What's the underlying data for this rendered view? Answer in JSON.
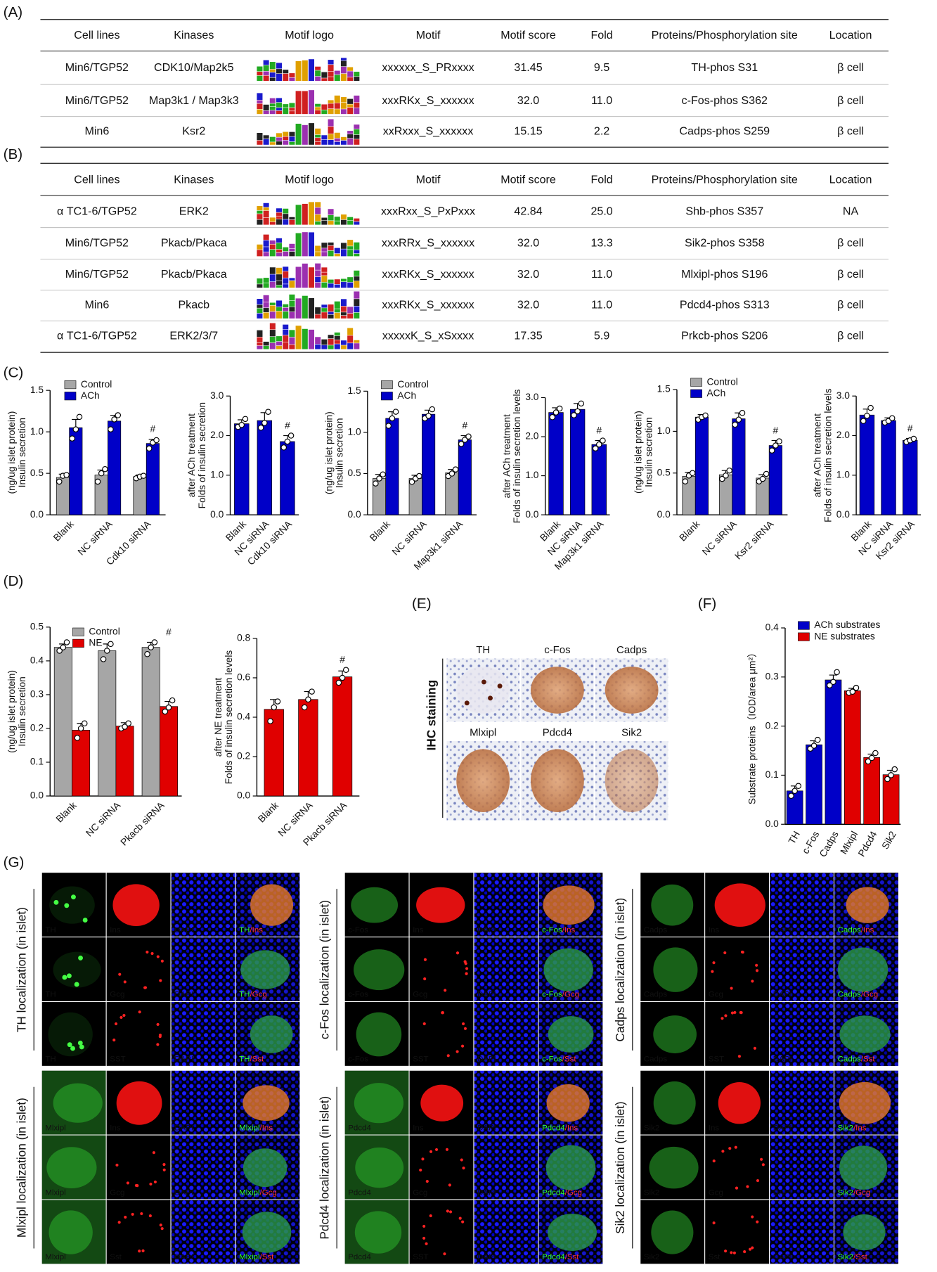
{
  "panel_labels": {
    "A": "(A)",
    "B": "(B)",
    "C": "(C)",
    "D": "(D)",
    "E": "(E)",
    "F": "(F)",
    "G": "(G)"
  },
  "table_a": {
    "header": [
      "Cell lines",
      "Kinases",
      "Motif logo",
      "Motif",
      "Motif score",
      "Fold",
      "Proteins/Phosphorylation site",
      "Location"
    ],
    "rows": [
      [
        "Min6/TGP52",
        "CDK10/Map2k5",
        "xxxxxx_S_PRxxxx",
        "31.45",
        "9.5",
        "TH-phos S31",
        "β cell"
      ],
      [
        "Min6/TGP52",
        "Map3k1 / Map3k3",
        "xxxRKx_S_xxxxxx",
        "32.0",
        "11.0",
        "c-Fos-phos S362",
        "β cell"
      ],
      [
        "Min6",
        "Ksr2",
        "xxRxxx_S_xxxxxx",
        "15.15",
        "2.2",
        "Cadps-phos S259",
        "β cell"
      ]
    ]
  },
  "table_b": {
    "header": [
      "Cell lines",
      "Kinases",
      "Motif logo",
      "Motif",
      "Motif score",
      "Fold",
      "Proteins/Phosphorylation site",
      "Location"
    ],
    "rows": [
      [
        "α TC1-6/TGP52",
        "ERK2",
        "xxxRxx_S_PxPxxx",
        "42.84",
        "25.0",
        "Shb-phos S357",
        "NA"
      ],
      [
        "Min6/TGP52",
        "Pkacb/Pkaca",
        "xxxRRx_S_xxxxxx",
        "32.0",
        "13.3",
        "Sik2-phos S358",
        "β cell"
      ],
      [
        "Min6/TGP52",
        "Pkacb/Pkaca",
        "xxxRKx_S_xxxxxx",
        "32.0",
        "11.0",
        "Mlxipl-phos S196",
        "β cell"
      ],
      [
        "Min6",
        "Pkacb",
        "xxxRKx_S_xxxxxx",
        "32.0",
        "11.0",
        "Pdcd4-phos S313",
        "β cell"
      ],
      [
        "α TC1-6/TGP52",
        "ERK2/3/7",
        "xxxxxK_S_xSxxxx",
        "17.35",
        "5.9",
        "Prkcb-phos S206",
        "β cell"
      ]
    ]
  },
  "chart_data": [
    {
      "type": "bar",
      "ylabel": [
        "Insulin secretion",
        "(ng/ug islet protein)"
      ],
      "categories": [
        "Blank",
        "NC siRNA",
        "Cdk10 siRNA"
      ],
      "series": [
        {
          "name": "Control",
          "color": "#a6a6a6",
          "values": [
            0.45,
            0.48,
            0.46
          ],
          "errors": [
            0.04,
            0.06,
            0.02
          ],
          "points": [
            [
              0.4,
              0.47,
              0.48
            ],
            [
              0.4,
              0.5,
              0.55
            ],
            [
              0.44,
              0.46,
              0.47
            ]
          ]
        },
        {
          "name": "ACh",
          "color": "#0000c8",
          "values": [
            1.05,
            1.13,
            0.86
          ],
          "errors": [
            0.1,
            0.07,
            0.05
          ],
          "points": [
            [
              0.92,
              1.03,
              1.18
            ],
            [
              1.03,
              1.15,
              1.2
            ],
            [
              0.8,
              0.87,
              0.9
            ]
          ]
        }
      ],
      "annotations": [
        null,
        null,
        "#"
      ],
      "ylim": [
        0,
        1.5
      ],
      "yticks": [
        {
          "value": 0,
          "label": "0.0"
        },
        0.5,
        {
          "value": 1,
          "label": "1.0"
        },
        1.5
      ]
    },
    {
      "type": "bar",
      "ylabel": [
        "Folds of insulin secretion",
        "after ACh treatment"
      ],
      "categories": [
        "Blank",
        "NC siRNA",
        "Cdk10 siRNA"
      ],
      "color": "#0000c8",
      "values": [
        2.3,
        2.38,
        1.85
      ],
      "errors": [
        0.1,
        0.2,
        0.15
      ],
      "points": [
        [
          2.22,
          2.27,
          2.42
        ],
        [
          2.2,
          2.32,
          2.6
        ],
        [
          1.7,
          1.85,
          2.0
        ]
      ],
      "annotations": [
        null,
        null,
        "#"
      ],
      "ylim": [
        0,
        3
      ],
      "yticks": [
        {
          "value": 0,
          "label": "0.0"
        },
        {
          "value": 1,
          "label": "1.0"
        },
        {
          "value": 2,
          "label": "2.0"
        },
        {
          "value": 3,
          "label": "3.0"
        }
      ]
    },
    {
      "type": "bar",
      "ylabel": [
        "Insulin secretion",
        "(ng/ug islet protein)"
      ],
      "categories": [
        "Blank",
        "NC siRNA",
        "Map3k1 siRNA"
      ],
      "series": [
        {
          "name": "Control",
          "color": "#a6a6a6",
          "values": [
            0.44,
            0.44,
            0.51
          ],
          "errors": [
            0.05,
            0.04,
            0.04
          ],
          "points": [
            [
              0.38,
              0.44,
              0.49
            ],
            [
              0.4,
              0.44,
              0.47
            ],
            [
              0.47,
              0.5,
              0.55
            ]
          ]
        },
        {
          "name": "ACh",
          "color": "#0000c8",
          "values": [
            1.17,
            1.22,
            0.91
          ],
          "errors": [
            0.08,
            0.05,
            0.05
          ],
          "points": [
            [
              1.08,
              1.17,
              1.25
            ],
            [
              1.17,
              1.2,
              1.28
            ],
            [
              0.86,
              0.91,
              0.95
            ]
          ]
        }
      ],
      "annotations": [
        null,
        null,
        "#"
      ],
      "ylim": [
        0,
        1.5
      ],
      "yticks": [
        {
          "value": 0,
          "label": "0.0"
        },
        0.5,
        {
          "value": 1,
          "label": "1.0"
        },
        1.5
      ]
    },
    {
      "type": "bar",
      "ylabel": [
        "Folds of insulin secretion levels",
        "after ACh treatment"
      ],
      "categories": [
        "Blank",
        "NC siRNA",
        "Map3k1 siRNA"
      ],
      "color": "#0000c8",
      "values": [
        2.62,
        2.7,
        1.8
      ],
      "errors": [
        0.12,
        0.15,
        0.1
      ],
      "points": [
        [
          2.5,
          2.62,
          2.72
        ],
        [
          2.55,
          2.65,
          2.85
        ],
        [
          1.7,
          1.8,
          1.9
        ]
      ],
      "annotations": [
        null,
        null,
        "#"
      ],
      "ylim": [
        0,
        3
      ],
      "yticks": [
        {
          "value": 0,
          "label": "0.0"
        },
        {
          "value": 1,
          "label": "1.0"
        },
        {
          "value": 2,
          "label": "2.0"
        },
        {
          "value": 3,
          "label": "3.0"
        }
      ]
    },
    {
      "type": "bar",
      "ylabel": [
        "Insulin secretion",
        "(ng/ug islet protein)"
      ],
      "categories": [
        "Blank",
        "NC siRNA",
        "Ksr2 siRNA"
      ],
      "series": [
        {
          "name": "Control",
          "color": "#a6a6a6",
          "values": [
            0.46,
            0.48,
            0.44
          ],
          "errors": [
            0.05,
            0.05,
            0.04
          ],
          "points": [
            [
              0.4,
              0.47,
              0.5
            ],
            [
              0.43,
              0.47,
              0.53
            ],
            [
              0.4,
              0.43,
              0.49
            ]
          ]
        },
        {
          "name": "ACh",
          "color": "#0000c8",
          "values": [
            1.17,
            1.15,
            0.83
          ],
          "errors": [
            0.03,
            0.07,
            0.06
          ],
          "points": [
            [
              1.14,
              1.17,
              1.19
            ],
            [
              1.08,
              1.14,
              1.22
            ],
            [
              0.77,
              0.83,
              0.88
            ]
          ]
        }
      ],
      "annotations": [
        null,
        null,
        "#"
      ],
      "ylim": [
        0,
        1.5
      ],
      "yticks": [
        {
          "value": 0,
          "label": "0.0"
        },
        0.5,
        {
          "value": 1,
          "label": "1.0"
        },
        1.5
      ]
    },
    {
      "type": "bar",
      "ylabel": [
        "Folds of insulin secretion levels",
        "after ACh treatment"
      ],
      "categories": [
        "Blank",
        "NC siRNA",
        "Ksr2 siRNA"
      ],
      "color": "#0000c8",
      "values": [
        2.52,
        2.38,
        1.88
      ],
      "errors": [
        0.15,
        0.07,
        0.05
      ],
      "points": [
        [
          2.37,
          2.5,
          2.7
        ],
        [
          2.33,
          2.37,
          2.44
        ],
        [
          1.84,
          1.88,
          1.92
        ]
      ],
      "annotations": [
        null,
        null,
        "#"
      ],
      "ylim": [
        0,
        3
      ],
      "yticks": [
        {
          "value": 0,
          "label": "0.0"
        },
        {
          "value": 1,
          "label": "1.0"
        },
        {
          "value": 2,
          "label": "2.0"
        },
        {
          "value": 3,
          "label": "3.0"
        }
      ]
    },
    {
      "type": "bar",
      "ylabel": [
        "Insulin secretion",
        "(ng/ug islet protein)"
      ],
      "categories": [
        "Blank",
        "NC siRNA",
        "Pkacb siRNA"
      ],
      "series": [
        {
          "name": "Control",
          "color": "#a6a6a6",
          "values": [
            0.44,
            0.43,
            0.44
          ],
          "errors": [
            0.01,
            0.02,
            0.015
          ],
          "points": [
            [
              0.43,
              0.44,
              0.455
            ],
            [
              0.405,
              0.43,
              0.45
            ],
            [
              0.42,
              0.44,
              0.455
            ]
          ]
        },
        {
          "name": "NE",
          "color": "#e00000",
          "values": [
            0.195,
            0.207,
            0.265
          ],
          "errors": [
            0.02,
            0.01,
            0.015
          ],
          "points": [
            [
              0.172,
              0.2,
              0.215
            ],
            [
              0.2,
              0.205,
              0.215
            ],
            [
              0.25,
              0.262,
              0.283
            ]
          ]
        }
      ],
      "annotations": [
        null,
        null,
        "#"
      ],
      "ylim": [
        0,
        0.5
      ],
      "yticks": [
        {
          "value": 0,
          "label": "0.0"
        },
        0.1,
        0.2,
        0.3,
        0.4,
        0.5
      ]
    },
    {
      "type": "bar",
      "ylabel": [
        "Folds of insulin secretion levels",
        "after NE treatment"
      ],
      "categories": [
        "Blank",
        "NC siRNA",
        "Pkacb siRNA"
      ],
      "color": "#e00000",
      "values": [
        0.44,
        0.49,
        0.605
      ],
      "errors": [
        0.05,
        0.04,
        0.03
      ],
      "points": [
        [
          0.38,
          0.45,
          0.48
        ],
        [
          0.45,
          0.49,
          0.53
        ],
        [
          0.575,
          0.6,
          0.64
        ]
      ],
      "annotations": [
        null,
        null,
        "#"
      ],
      "ylim": [
        0,
        0.8
      ],
      "yticks": [
        {
          "value": 0,
          "label": "0.0"
        },
        0.2,
        0.4,
        0.6,
        0.8
      ]
    },
    {
      "type": "bar",
      "ylabel": [
        "Substrate proteins（IOD/area μm²）"
      ],
      "categories": [
        "TH",
        "c-Fos",
        "Cadps",
        "Mlxipl",
        "Pdcd4",
        "Sik2"
      ],
      "series": [
        {
          "name": "ACh substrates",
          "color": "#0000c8",
          "values": [
            0.068,
            0.162,
            0.294,
            null,
            null,
            null
          ],
          "errors": [
            0.01,
            0.008,
            0.01,
            null,
            null,
            null
          ],
          "points": [
            [
              0.058,
              0.068,
              0.078
            ],
            [
              0.154,
              0.16,
              0.172
            ],
            [
              0.283,
              0.29,
              0.31
            ],
            null,
            null,
            null
          ]
        },
        {
          "name": "NE substrates",
          "color": "#e00000",
          "values": [
            null,
            null,
            null,
            0.272,
            0.136,
            0.101
          ],
          "errors": [
            null,
            null,
            null,
            0.005,
            0.007,
            0.009
          ],
          "points": [
            null,
            null,
            null,
            [
              0.268,
              0.27,
              0.278
            ],
            [
              0.128,
              0.135,
              0.145
            ],
            [
              0.092,
              0.1,
              0.112
            ]
          ]
        }
      ],
      "ylim": [
        0,
        0.4
      ],
      "yticks": [
        {
          "value": 0,
          "label": "0.0"
        },
        0.1,
        0.2,
        0.3,
        0.4
      ]
    }
  ],
  "ihc": {
    "side_label": "IHC staining",
    "images": [
      "TH",
      "c-Fos",
      "Cadps",
      "Mlxipl",
      "Pdcd4",
      "Sik2"
    ]
  },
  "if_staining": {
    "groups": [
      {
        "title": "TH localization (in islet)",
        "rows": [
          [
            "TH",
            "Ins",
            "DAPI",
            [
              "TH",
              "/Ins"
            ]
          ],
          [
            "TH",
            "Gcg",
            "DAPI",
            [
              "TH",
              "/Gcg"
            ]
          ],
          [
            "TH",
            "SST",
            "DAPI",
            [
              "TH",
              "/Sst"
            ]
          ]
        ]
      },
      {
        "title": "c-Fos localization (in islet)",
        "rows": [
          [
            "c-Fos",
            "Ins",
            "DAPI",
            [
              "c-Fos",
              "/Ins"
            ]
          ],
          [
            "c-Fos",
            "Gcg",
            "DAPI",
            [
              "c-Fos",
              "/Gcg"
            ]
          ],
          [
            "c-Fos",
            "SST",
            "DAPI",
            [
              "c-Fos",
              "/Sst"
            ]
          ]
        ]
      },
      {
        "title": "Cadps localization (in islet)",
        "rows": [
          [
            "Cadps",
            "Ins",
            "DAPI",
            [
              "Cadps",
              "/Ins"
            ]
          ],
          [
            "Cadps",
            "Gcg",
            "DAPI",
            [
              "Cadps",
              "/Gcg"
            ]
          ],
          [
            "Cadps",
            "SST",
            "DAPI",
            [
              "Cadps",
              "/Sst"
            ]
          ]
        ]
      },
      {
        "title": "Mlxipl localization (in islet)",
        "rows": [
          [
            "Mlxipl",
            "Ins",
            "DAPI",
            [
              "Mlxipl",
              "/Ins"
            ]
          ],
          [
            "Mlxipl",
            "Gcg",
            "DAPI",
            [
              "Mlxipl",
              "/Gcg"
            ]
          ],
          [
            "Mlxipl",
            "Sst",
            "DAPI",
            [
              "Mlxipl",
              "/Sst"
            ]
          ]
        ]
      },
      {
        "title": "Pdcd4 localization (in islet)",
        "rows": [
          [
            "Pdcd4",
            "Ins",
            "DAPI",
            [
              "Pdcd4",
              "/Ins"
            ]
          ],
          [
            "Pdcd4",
            "Gcg",
            "DAPI",
            [
              "Pdcd4",
              "/Gcg"
            ]
          ],
          [
            "Pdcd4",
            "SST",
            "DAPI",
            [
              "Pdcd4",
              "/Sst"
            ]
          ]
        ]
      },
      {
        "title": "Sik2 localization (in islet)",
        "rows": [
          [
            "Sik2",
            "Ins",
            "DAPI",
            [
              "Sik2",
              "/Ins"
            ]
          ],
          [
            "Sik2",
            "Gcg",
            "DAPI",
            [
              "Sik2",
              "/Gcg"
            ]
          ],
          [
            "Sik2",
            "Sst",
            "DAPI",
            [
              "Sik2",
              "/Sst"
            ]
          ]
        ]
      }
    ]
  }
}
